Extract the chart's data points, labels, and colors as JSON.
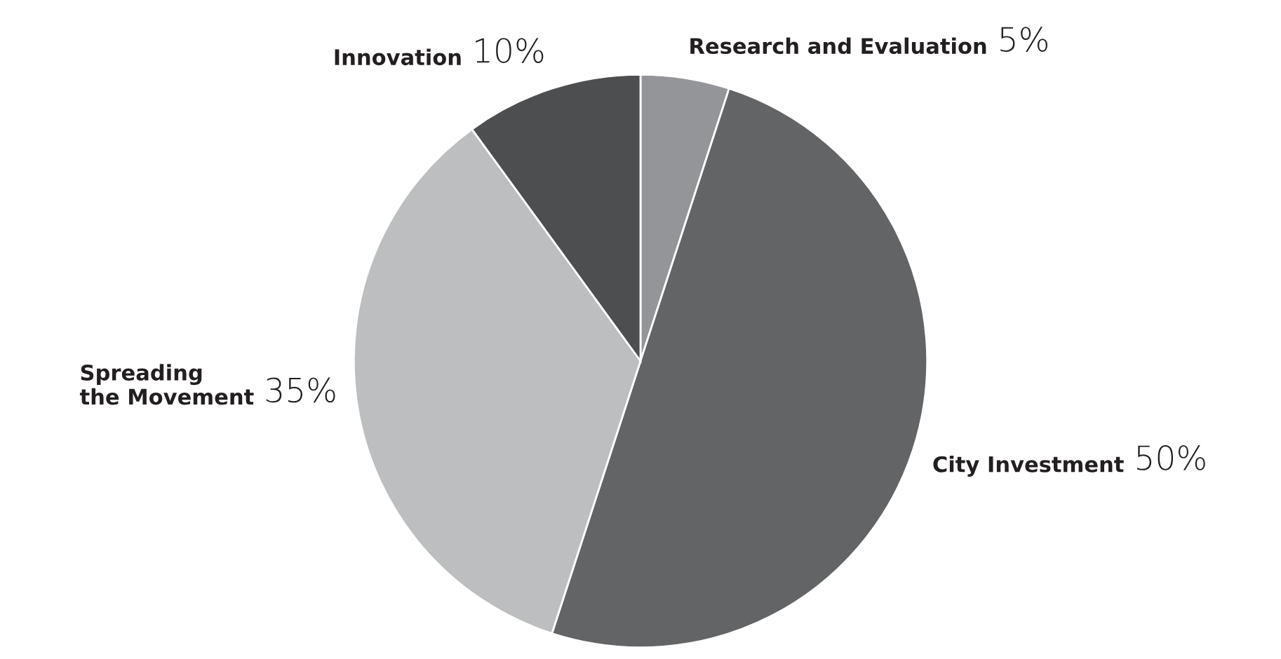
{
  "chart_data": {
    "type": "pie",
    "categories": [
      "Research and Evaluation",
      "City Investment",
      "Spreading\nthe Movement",
      "Innovation"
    ],
    "values": [
      5,
      50,
      35,
      10
    ],
    "value_labels": [
      "5%",
      "50%",
      "35%",
      "10%"
    ],
    "colors": [
      "#939598",
      "#636466",
      "#bcbec0",
      "#4d4e50"
    ]
  }
}
